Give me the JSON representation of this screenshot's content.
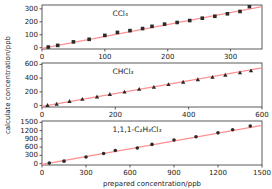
{
  "chart_data": [
    {
      "type": "scatter",
      "annotation": "CCl₄",
      "xlim": [
        0,
        350
      ],
      "ylim": [
        -10,
        330
      ],
      "xticks": [
        0,
        100,
        200,
        300
      ],
      "yticks": [
        0,
        100,
        200,
        300
      ],
      "series": [
        {
          "type": "line",
          "color": "#ff9090",
          "x": [
            0,
            350
          ],
          "values": [
            -5,
            318
          ]
        },
        {
          "type": "scatter",
          "marker": "square",
          "color": "#2a2a2a",
          "x": [
            10,
            25,
            50,
            75,
            100,
            120,
            140,
            160,
            175,
            195,
            215,
            235,
            255,
            275,
            295,
            315,
            330
          ],
          "values": [
            5,
            18,
            45,
            65,
            95,
            118,
            132,
            148,
            165,
            182,
            195,
            210,
            228,
            243,
            262,
            280,
            318
          ]
        }
      ]
    },
    {
      "type": "scatter",
      "annotation": "CHCl₃",
      "y_label": "calculate concentration/ppb",
      "xlim": [
        0,
        600
      ],
      "ylim": [
        -20,
        620
      ],
      "xticks": [
        0,
        200,
        400,
        600
      ],
      "yticks": [
        0,
        200,
        400,
        600
      ],
      "series": [
        {
          "type": "line",
          "color": "#ff9090",
          "x": [
            0,
            600
          ],
          "values": [
            -10,
            550
          ]
        },
        {
          "type": "scatter",
          "marker": "triangle",
          "color": "#2a2a2a",
          "x": [
            15,
            40,
            75,
            110,
            150,
            185,
            225,
            265,
            305,
            345,
            385,
            425,
            465,
            500,
            540,
            570
          ],
          "values": [
            5,
            25,
            65,
            95,
            130,
            165,
            200,
            240,
            270,
            310,
            345,
            380,
            415,
            445,
            480,
            510
          ]
        }
      ]
    },
    {
      "type": "scatter",
      "annotation": "1,1,1-C₂H₃Cl₃",
      "x_label": "prepared concentration/ppb",
      "xlim": [
        0,
        1500
      ],
      "ylim": [
        -50,
        1550
      ],
      "xticks": [
        0,
        300,
        600,
        900,
        1200,
        1500
      ],
      "yticks": [
        0,
        300,
        600,
        900,
        1200,
        1500
      ],
      "series": [
        {
          "type": "line",
          "color": "#ff9090",
          "x": [
            0,
            1500
          ],
          "values": [
            -30,
            1390
          ]
        },
        {
          "type": "scatter",
          "marker": "circle",
          "color": "#2a2a2a",
          "x": [
            50,
            150,
            300,
            420,
            500,
            650,
            750,
            900,
            1050,
            1200,
            1300,
            1420
          ],
          "values": [
            20,
            90,
            240,
            370,
            480,
            570,
            700,
            860,
            980,
            1120,
            1230,
            1370
          ]
        }
      ]
    }
  ]
}
